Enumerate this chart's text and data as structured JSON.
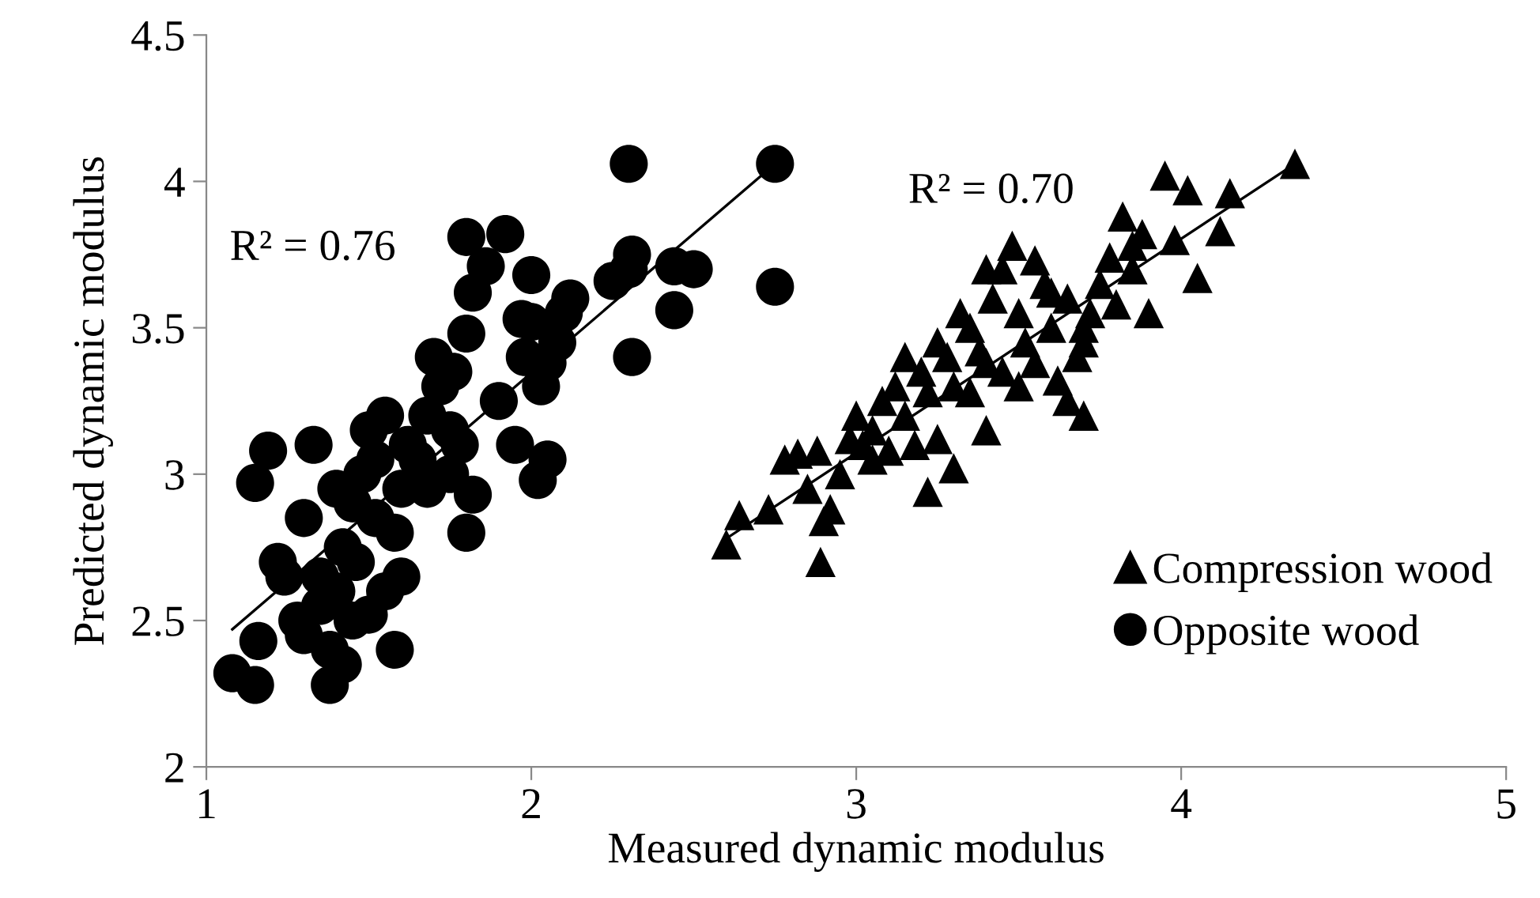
{
  "chart_data": {
    "type": "scatter",
    "xlabel": "Measured dynamic modulus",
    "ylabel": "Predicted dynamic modulus",
    "xlim": [
      1,
      5
    ],
    "xticks": [
      1,
      2,
      3,
      4,
      5
    ],
    "ylim": [
      2,
      4.5
    ],
    "yticks": [
      2,
      2.5,
      3,
      3.5,
      4,
      4.5
    ],
    "grid": false,
    "legend": "bottom right",
    "annotations": [
      "R² = 0.76",
      "R² = 0.70"
    ],
    "series": [
      {
        "name": "Compression wood",
        "color": "#000000",
        "marker": "triangle",
        "x": [
          2.6,
          2.64,
          2.73,
          2.78,
          2.82,
          2.85,
          2.88,
          2.9,
          2.89,
          2.92,
          2.95,
          3.0,
          3.02,
          3.05,
          3.08,
          3.1,
          3.12,
          3.15,
          3.18,
          3.2,
          3.22,
          3.25,
          3.28,
          3.3,
          3.3,
          3.32,
          3.35,
          3.38,
          3.4,
          3.42,
          3.45,
          3.48,
          3.5,
          3.52,
          3.55,
          3.58,
          3.6,
          3.62,
          3.65,
          3.68,
          3.7,
          3.72,
          3.75,
          3.78,
          3.8,
          3.82,
          3.85,
          3.88,
          3.9,
          3.95,
          3.98,
          4.02,
          4.05,
          4.12,
          4.15,
          4.35,
          3.22,
          3.4,
          3.5,
          3.6,
          3.25,
          3.15,
          3.05,
          3.35,
          3.45,
          3.7,
          3.85,
          3.55,
          3.65,
          3.4,
          3.7,
          2.98
        ],
        "values": [
          2.76,
          2.86,
          2.88,
          3.05,
          3.07,
          2.95,
          3.08,
          2.84,
          2.7,
          2.88,
          3.0,
          3.2,
          3.1,
          3.15,
          3.25,
          3.08,
          3.3,
          3.2,
          3.1,
          3.35,
          3.28,
          3.45,
          3.4,
          3.02,
          3.3,
          3.55,
          3.5,
          3.42,
          3.38,
          3.6,
          3.7,
          3.78,
          3.55,
          3.45,
          3.38,
          3.65,
          3.5,
          3.32,
          3.25,
          3.4,
          3.2,
          3.55,
          3.65,
          3.74,
          3.58,
          3.88,
          3.7,
          3.82,
          3.55,
          4.02,
          3.8,
          3.97,
          3.67,
          3.83,
          3.96,
          4.06,
          2.94,
          3.15,
          3.3,
          3.62,
          3.12,
          3.4,
          3.05,
          3.28,
          3.35,
          3.45,
          3.78,
          3.73,
          3.6,
          3.7,
          3.5,
          3.12
        ]
      },
      {
        "name": "Opposite wood",
        "color": "#000000",
        "marker": "circle",
        "x": [
          1.08,
          1.15,
          1.16,
          1.15,
          1.19,
          1.22,
          1.24,
          1.3,
          1.33,
          1.38,
          1.38,
          1.3,
          1.35,
          1.4,
          1.42,
          1.45,
          1.48,
          1.5,
          1.52,
          1.46,
          1.5,
          1.55,
          1.58,
          1.6,
          1.62,
          1.65,
          1.55,
          1.6,
          1.45,
          1.4,
          1.52,
          1.68,
          1.7,
          1.72,
          1.75,
          1.78,
          1.8,
          1.82,
          1.75,
          1.68,
          1.76,
          1.8,
          1.82,
          1.8,
          1.86,
          1.92,
          1.9,
          1.95,
          1.98,
          2.0,
          2.0,
          2.02,
          2.05,
          2.03,
          2.08,
          2.1,
          2.12,
          2.05,
          1.97,
          2.25,
          2.3,
          2.31,
          2.3,
          2.31,
          2.44,
          2.5,
          2.44,
          2.75,
          2.75,
          1.58,
          1.35,
          1.28,
          1.42
        ],
        "values": [
          2.32,
          2.28,
          2.43,
          2.97,
          3.08,
          2.7,
          2.65,
          2.85,
          3.1,
          2.28,
          2.4,
          2.45,
          2.55,
          2.6,
          2.75,
          2.9,
          3.0,
          3.15,
          3.05,
          2.7,
          2.52,
          2.6,
          2.8,
          2.95,
          3.1,
          3.05,
          3.2,
          2.65,
          2.5,
          2.95,
          2.85,
          3.2,
          3.4,
          3.3,
          3.15,
          3.1,
          2.8,
          2.93,
          3.0,
          2.95,
          3.35,
          3.48,
          3.62,
          3.81,
          3.71,
          3.82,
          3.25,
          3.1,
          3.4,
          3.52,
          3.68,
          2.98,
          3.05,
          3.3,
          3.45,
          3.55,
          3.6,
          3.38,
          3.53,
          3.66,
          3.7,
          3.75,
          4.06,
          3.4,
          3.71,
          3.7,
          3.56,
          4.06,
          3.64,
          2.4,
          2.65,
          2.5,
          2.35
        ]
      },
      {
        "type": "line",
        "color": "#000000",
        "x": [
          1.08,
          2.75
        ],
        "values": [
          2.47,
          4.06
        ]
      },
      {
        "type": "line",
        "color": "#000000",
        "x": [
          2.6,
          4.35
        ],
        "values": [
          2.78,
          4.06
        ]
      }
    ]
  }
}
